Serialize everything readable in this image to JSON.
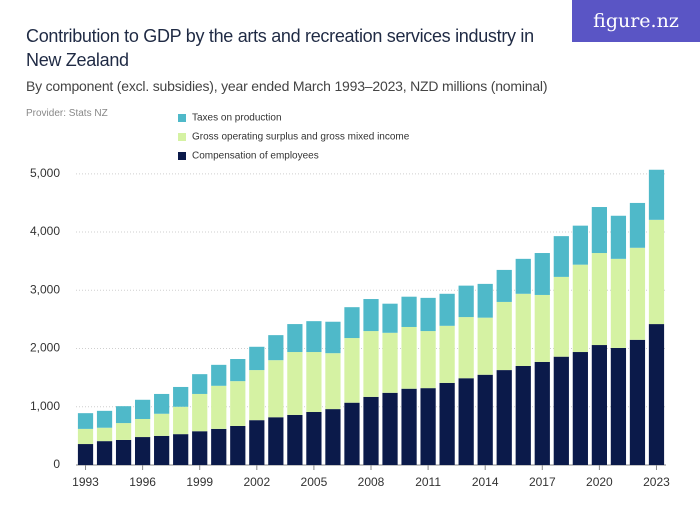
{
  "chart_data": {
    "type": "stacked-bar",
    "title": "Contribution to GDP by the arts and recreation services industry in New Zealand",
    "subtitle": "By component (excl. subsidies), year ended March 1993–2023, NZD millions (nominal)",
    "provider": "Provider: Stats NZ",
    "brand": "figure.nz",
    "categories": [
      "1993",
      null,
      null,
      "1996",
      null,
      null,
      "1999",
      null,
      null,
      "2002",
      null,
      null,
      "2005",
      null,
      null,
      "2008",
      null,
      null,
      "2011",
      null,
      null,
      "2014",
      null,
      null,
      "2017",
      null,
      null,
      "2020",
      null,
      null,
      "2023"
    ],
    "series": [
      {
        "name": "Compensation of employees",
        "color": "#0b1a4a",
        "values": [
          360,
          410,
          430,
          480,
          500,
          530,
          580,
          620,
          670,
          770,
          820,
          860,
          910,
          960,
          1070,
          1170,
          1240,
          1310,
          1320,
          1410,
          1490,
          1550,
          1630,
          1700,
          1770,
          1860,
          1940,
          2060,
          2010,
          2150,
          2420
        ]
      },
      {
        "name": "Gross operating surplus and gross mixed income",
        "color": "#d5f2a3",
        "values": [
          260,
          230,
          290,
          310,
          380,
          470,
          640,
          740,
          770,
          860,
          980,
          1080,
          1030,
          960,
          1110,
          1130,
          1030,
          1060,
          980,
          980,
          1050,
          980,
          1170,
          1240,
          1150,
          1370,
          1500,
          1580,
          1530,
          1580,
          1790
        ]
      },
      {
        "name": "Taxes on production",
        "color": "#4fb9c9",
        "values": [
          270,
          290,
          290,
          330,
          340,
          340,
          340,
          360,
          380,
          400,
          430,
          480,
          530,
          540,
          530,
          550,
          500,
          520,
          570,
          550,
          540,
          580,
          550,
          600,
          720,
          700,
          670,
          790,
          740,
          770,
          860
        ]
      }
    ],
    "ylim": [
      0,
      5100
    ],
    "yticks": [
      0,
      {
        "value": 1000,
        "label": "1,000"
      },
      {
        "value": 2000,
        "label": "2,000"
      },
      {
        "value": 3000,
        "label": "3,000"
      },
      {
        "value": 4000,
        "label": "4,000"
      },
      {
        "value": 5000,
        "label": "5,000"
      }
    ],
    "grid": true
  }
}
